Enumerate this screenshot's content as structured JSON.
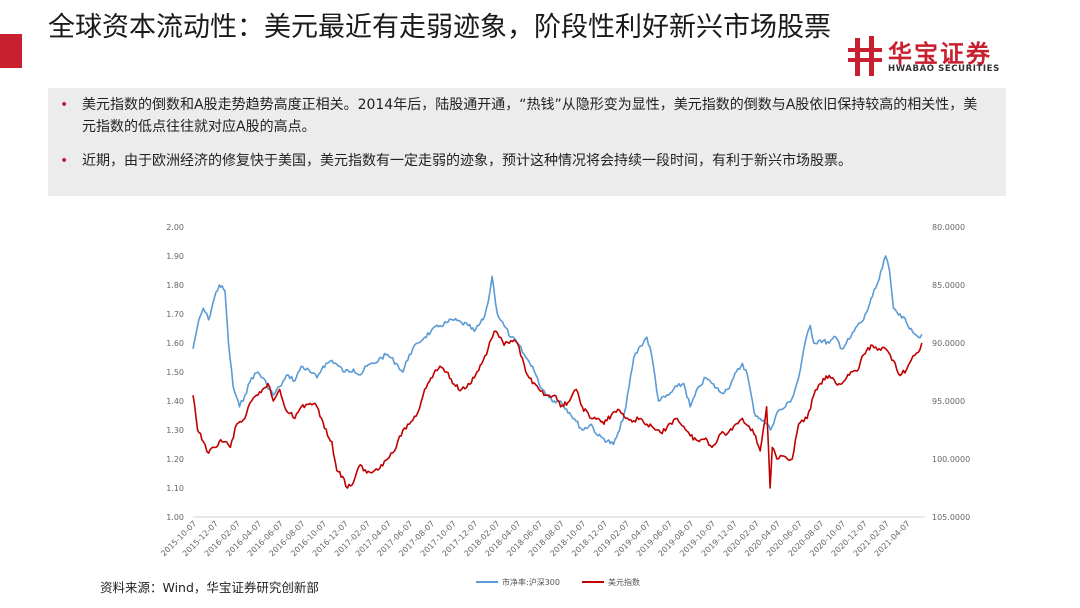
{
  "header": {
    "title": "全球资本流动性：美元最近有走弱迹象，阶段性利好新兴市场股票",
    "brand_cn": "华宝证券",
    "brand_en": "HWABAO SECURITIES",
    "brand_color": "#c8202f"
  },
  "bullets": [
    "美元指数的倒数和A股走势趋势高度正相关。2014年后，陆股通开通，“热钱”从隐形变为显性，美元指数的倒数与A股依旧保持较高的相关性，美元指数的低点往往就对应A股的高点。",
    "近期，由于欧洲经济的修复快于美国，美元指数有一定走弱的迹象，预计这种情况将会持续一段时间，有利于新兴市场股票。"
  ],
  "source": "资料来源：Wind，华宝证券研究创新部",
  "chart_data": {
    "type": "line",
    "grid": false,
    "legend_position": "bottom",
    "x_tick_labels": [
      "2015-10-07",
      "2015-12-07",
      "2016-02-07",
      "2016-04-07",
      "2016-06-07",
      "2016-08-07",
      "2016-10-07",
      "2016-12-07",
      "2017-02-07",
      "2017-04-07",
      "2017-06-07",
      "2017-08-07",
      "2017-10-07",
      "2017-12-07",
      "2018-02-07",
      "2018-04-07",
      "2018-06-07",
      "2018-08-07",
      "2018-10-07",
      "2018-12-07",
      "2019-02-07",
      "2019-04-07",
      "2019-06-07",
      "2019-08-07",
      "2019-10-07",
      "2019-12-07",
      "2020-02-07",
      "2020-04-07",
      "2020-06-07",
      "2020-08-07",
      "2020-10-07",
      "2020-12-07",
      "2021-02-07",
      "2021-04-07"
    ],
    "y_left": {
      "ylim": [
        1.0,
        2.0
      ],
      "ticks": [
        "2.00",
        "1.90",
        "1.80",
        "1.70",
        "1.60",
        "1.50",
        "1.40",
        "1.30",
        "1.20",
        "1.10",
        "1.00"
      ]
    },
    "y_right": {
      "ylim": [
        80,
        105
      ],
      "inverted": true,
      "ticks": [
        "80.0000",
        "85.0000",
        "90.0000",
        "95.0000",
        "100.0000",
        "105.0000"
      ]
    },
    "series": [
      {
        "name": "市净率:沪深300",
        "axis": "left",
        "color": "#5b9bd5",
        "x": [
          "2015-10-07",
          "2015-10-20",
          "2015-11-05",
          "2015-11-20",
          "2015-12-07",
          "2015-12-20",
          "2016-01-05",
          "2016-01-15",
          "2016-01-28",
          "2016-02-15",
          "2016-03-01",
          "2016-03-20",
          "2016-04-07",
          "2016-05-01",
          "2016-05-20",
          "2016-06-07",
          "2016-07-01",
          "2016-07-20",
          "2016-08-07",
          "2016-09-01",
          "2016-09-20",
          "2016-10-07",
          "2016-11-01",
          "2016-11-20",
          "2016-12-07",
          "2017-01-01",
          "2017-01-20",
          "2017-02-07",
          "2017-03-01",
          "2017-03-20",
          "2017-04-07",
          "2017-05-01",
          "2017-05-20",
          "2017-06-07",
          "2017-07-01",
          "2017-07-20",
          "2017-08-07",
          "2017-09-01",
          "2017-09-20",
          "2017-10-07",
          "2017-11-01",
          "2017-11-20",
          "2017-12-07",
          "2018-01-01",
          "2018-01-15",
          "2018-01-26",
          "2018-02-10",
          "2018-03-01",
          "2018-03-20",
          "2018-04-07",
          "2018-05-01",
          "2018-05-20",
          "2018-06-07",
          "2018-07-01",
          "2018-07-20",
          "2018-08-07",
          "2018-09-01",
          "2018-09-20",
          "2018-10-07",
          "2018-11-01",
          "2018-11-20",
          "2018-12-07",
          "2019-01-03",
          "2019-01-20",
          "2019-02-07",
          "2019-03-01",
          "2019-03-20",
          "2019-04-07",
          "2019-04-20",
          "2019-05-10",
          "2019-06-07",
          "2019-07-01",
          "2019-07-20",
          "2019-08-07",
          "2019-09-01",
          "2019-09-20",
          "2019-10-07",
          "2019-11-01",
          "2019-11-20",
          "2019-12-07",
          "2020-01-01",
          "2020-01-15",
          "2020-02-03",
          "2020-02-20",
          "2020-03-10",
          "2020-03-20",
          "2020-04-07",
          "2020-05-01",
          "2020-05-20",
          "2020-06-07",
          "2020-07-01",
          "2020-07-10",
          "2020-07-20",
          "2020-08-07",
          "2020-09-01",
          "2020-09-20",
          "2020-10-07",
          "2020-11-01",
          "2020-11-20",
          "2020-12-07",
          "2021-01-01",
          "2021-01-20",
          "2021-02-07",
          "2021-02-18",
          "2021-03-01",
          "2021-03-20",
          "2021-04-07",
          "2021-04-20",
          "2021-05-10",
          "2021-05-20"
        ],
        "y": [
          1.58,
          1.66,
          1.72,
          1.68,
          1.76,
          1.8,
          1.78,
          1.6,
          1.45,
          1.38,
          1.42,
          1.48,
          1.5,
          1.46,
          1.42,
          1.45,
          1.49,
          1.47,
          1.52,
          1.5,
          1.48,
          1.52,
          1.54,
          1.52,
          1.5,
          1.51,
          1.49,
          1.52,
          1.53,
          1.55,
          1.56,
          1.53,
          1.5,
          1.56,
          1.6,
          1.62,
          1.64,
          1.66,
          1.67,
          1.68,
          1.67,
          1.66,
          1.64,
          1.68,
          1.74,
          1.83,
          1.7,
          1.66,
          1.62,
          1.6,
          1.55,
          1.52,
          1.46,
          1.42,
          1.4,
          1.4,
          1.36,
          1.33,
          1.3,
          1.32,
          1.28,
          1.27,
          1.25,
          1.3,
          1.38,
          1.55,
          1.59,
          1.62,
          1.56,
          1.4,
          1.42,
          1.45,
          1.46,
          1.38,
          1.45,
          1.48,
          1.46,
          1.43,
          1.44,
          1.48,
          1.53,
          1.49,
          1.36,
          1.34,
          1.32,
          1.3,
          1.36,
          1.38,
          1.41,
          1.48,
          1.63,
          1.66,
          1.6,
          1.61,
          1.6,
          1.62,
          1.58,
          1.62,
          1.66,
          1.68,
          1.76,
          1.82,
          1.9,
          1.85,
          1.72,
          1.7,
          1.67,
          1.65,
          1.62,
          1.63
        ]
      },
      {
        "name": "美元指数",
        "axis": "right",
        "color": "#c00000",
        "x": [
          "2015-10-07",
          "2015-10-20",
          "2015-11-05",
          "2015-11-20",
          "2015-12-07",
          "2015-12-20",
          "2016-01-05",
          "2016-01-20",
          "2016-02-07",
          "2016-03-01",
          "2016-03-20",
          "2016-04-07",
          "2016-04-20",
          "2016-05-05",
          "2016-05-20",
          "2016-06-07",
          "2016-06-25",
          "2016-07-10",
          "2016-07-20",
          "2016-08-07",
          "2016-09-01",
          "2016-09-20",
          "2016-10-07",
          "2016-10-20",
          "2016-11-01",
          "2016-11-15",
          "2016-12-01",
          "2016-12-15",
          "2017-01-01",
          "2017-01-20",
          "2017-02-07",
          "2017-03-01",
          "2017-03-20",
          "2017-04-07",
          "2017-05-01",
          "2017-05-20",
          "2017-06-07",
          "2017-07-01",
          "2017-07-20",
          "2017-08-07",
          "2017-09-01",
          "2017-09-20",
          "2017-10-07",
          "2017-11-01",
          "2017-11-20",
          "2017-12-07",
          "2018-01-01",
          "2018-01-15",
          "2018-02-01",
          "2018-02-15",
          "2018-03-01",
          "2018-03-20",
          "2018-04-07",
          "2018-05-01",
          "2018-05-20",
          "2018-06-07",
          "2018-07-01",
          "2018-07-20",
          "2018-08-07",
          "2018-09-01",
          "2018-09-20",
          "2018-10-07",
          "2018-11-01",
          "2018-11-20",
          "2018-12-07",
          "2019-01-01",
          "2019-01-20",
          "2019-02-07",
          "2019-03-01",
          "2019-03-20",
          "2019-04-07",
          "2019-05-01",
          "2019-05-20",
          "2019-06-07",
          "2019-07-01",
          "2019-07-20",
          "2019-08-07",
          "2019-09-01",
          "2019-09-20",
          "2019-10-07",
          "2019-11-01",
          "2019-11-20",
          "2019-12-07",
          "2020-01-01",
          "2020-01-20",
          "2020-02-07",
          "2020-02-20",
          "2020-03-09",
          "2020-03-19",
          "2020-03-25",
          "2020-04-07",
          "2020-05-01",
          "2020-05-20",
          "2020-06-07",
          "2020-07-01",
          "2020-07-20",
          "2020-08-07",
          "2020-09-01",
          "2020-09-20",
          "2020-10-07",
          "2020-11-01",
          "2020-11-20",
          "2020-12-07",
          "2021-01-01",
          "2021-01-20",
          "2021-02-07",
          "2021-03-01",
          "2021-03-20",
          "2021-04-07",
          "2021-04-20",
          "2021-05-10",
          "2021-05-20"
        ],
        "y": [
          94.5,
          97.5,
          98.5,
          99.5,
          99.0,
          98.5,
          98.5,
          99.0,
          97.0,
          96.5,
          95.0,
          94.5,
          94.0,
          93.5,
          95.0,
          94.0,
          95.8,
          96.0,
          96.5,
          95.5,
          95.2,
          95.5,
          96.8,
          98.0,
          98.5,
          101.0,
          101.5,
          102.5,
          102.0,
          100.5,
          101.2,
          101.0,
          100.5,
          100.0,
          99.0,
          97.5,
          97.0,
          96.0,
          94.0,
          93.0,
          92.0,
          92.5,
          93.5,
          94.0,
          93.5,
          93.0,
          91.5,
          90.5,
          89.0,
          89.5,
          90.2,
          89.8,
          90.0,
          92.5,
          93.5,
          94.0,
          94.5,
          94.5,
          95.5,
          95.0,
          94.0,
          95.5,
          96.5,
          96.5,
          97.0,
          96.0,
          95.8,
          96.5,
          96.7,
          96.5,
          97.0,
          97.5,
          97.8,
          97.0,
          96.5,
          97.2,
          98.0,
          98.5,
          98.2,
          99.0,
          97.8,
          97.8,
          97.2,
          96.5,
          97.2,
          98.0,
          99.3,
          95.5,
          102.5,
          99.0,
          100.0,
          99.8,
          100.0,
          97.0,
          96.5,
          94.5,
          93.5,
          92.8,
          93.5,
          93.5,
          92.5,
          92.4,
          91.0,
          90.2,
          90.5,
          90.5,
          91.5,
          92.8,
          92.3,
          91.5,
          90.8,
          90.0
        ]
      }
    ]
  }
}
